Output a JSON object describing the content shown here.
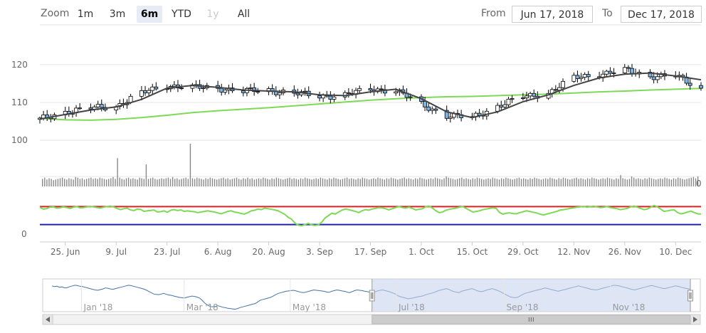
{
  "toolbar": {
    "zoom_label": "Zoom",
    "buttons": [
      {
        "label": "1m",
        "state": "normal"
      },
      {
        "label": "3m",
        "state": "normal"
      },
      {
        "label": "6m",
        "state": "selected"
      },
      {
        "label": "YTD",
        "state": "normal"
      },
      {
        "label": "1y",
        "state": "disabled"
      },
      {
        "label": "All",
        "state": "normal"
      }
    ],
    "from_label": "From",
    "from_value": "Jun 17, 2018",
    "to_label": "To",
    "to_value": "Dec 17, 2018"
  },
  "colors": {
    "sma_long": "#7ed957",
    "sma_short": "#444444",
    "rise_candle": "#ffffff",
    "fall_candle": "#7cb5ec",
    "volume": "#888888",
    "oscillator": "#7ed957",
    "upper_line": "#e02020",
    "lower_line": "#2020b0",
    "navigator_fill": "#c8d4ec",
    "navigator_line": "#4572a7"
  },
  "chart_data": [
    {
      "type": "candlestick",
      "title": "",
      "ylim": [
        100,
        123
      ],
      "yticks": [
        100,
        110,
        120
      ],
      "xticks": [
        "25. Jun",
        "9. Jul",
        "23. Jul",
        "6. Aug",
        "20. Aug",
        "3. Sep",
        "17. Sep",
        "1. Oct",
        "15. Oct",
        "29. Oct",
        "12. Nov",
        "26. Nov",
        "10. Dec"
      ],
      "x_range": [
        "2018-06-18",
        "2018-12-17"
      ],
      "close_series": {
        "dates": [
          "2018-06-18",
          "2018-06-25",
          "2018-07-02",
          "2018-07-09",
          "2018-07-16",
          "2018-07-23",
          "2018-07-30",
          "2018-08-06",
          "2018-08-13",
          "2018-08-20",
          "2018-08-27",
          "2018-09-03",
          "2018-09-10",
          "2018-09-17",
          "2018-09-24",
          "2018-10-01",
          "2018-10-08",
          "2018-10-15",
          "2018-10-22",
          "2018-10-29",
          "2018-11-05",
          "2018-11-12",
          "2018-11-19",
          "2018-11-26",
          "2018-12-03",
          "2018-12-10",
          "2018-12-17"
        ],
        "values": [
          105.5,
          107.5,
          108.5,
          109,
          112.5,
          114.5,
          114,
          113.8,
          113,
          113.2,
          112.5,
          111.6,
          112,
          113.5,
          113.2,
          109.5,
          106.5,
          106,
          109,
          111.5,
          112.5,
          116.5,
          117.5,
          118.5,
          117,
          117,
          113.5
        ]
      },
      "series": [
        {
          "name": "",
          "kind": "sma_long",
          "values": [
            105.8,
            105.4,
            105.3,
            105.5,
            106,
            106.6,
            107.3,
            107.8,
            108.2,
            108.6,
            109.1,
            109.6,
            110.1,
            110.6,
            111,
            111.3,
            111.5,
            111.6,
            111.8,
            112,
            112.2,
            112.5,
            112.8,
            113,
            113.3,
            113.5,
            113.7
          ]
        },
        {
          "name": "",
          "kind": "sma_short",
          "values": [
            105.6,
            106.8,
            108,
            108.8,
            110.8,
            113.8,
            114.5,
            114,
            113.3,
            113,
            112.8,
            112,
            111.8,
            112.8,
            113.5,
            111,
            107.5,
            106,
            107.5,
            110.2,
            112,
            114.5,
            116.5,
            117.5,
            117.8,
            117,
            116
          ]
        }
      ]
    },
    {
      "type": "bar",
      "title": "",
      "note": "volume",
      "values": [
        12,
        14,
        11,
        13,
        12,
        10,
        11,
        12,
        13,
        14,
        12,
        11,
        13,
        12,
        11,
        15,
        14,
        12,
        13,
        11,
        12,
        13,
        14,
        12,
        13,
        12,
        14,
        13,
        12,
        11,
        12,
        13,
        15,
        12,
        45,
        14,
        12,
        11,
        13,
        14,
        12,
        13,
        12,
        11,
        14,
        13,
        12,
        35,
        12,
        13,
        14,
        12,
        11,
        12,
        13,
        12,
        13,
        14,
        12,
        15,
        12,
        13,
        11,
        12,
        13,
        14,
        12,
        68,
        13,
        12,
        14,
        13,
        12,
        11,
        13,
        12,
        14,
        13,
        12,
        11,
        12,
        13,
        14,
        12,
        13,
        11,
        12,
        13,
        14,
        12,
        11,
        13,
        12,
        14,
        12,
        13,
        11,
        12,
        13,
        12,
        14,
        13,
        12,
        11,
        13,
        12,
        14,
        13,
        12,
        11,
        12,
        13,
        14,
        12,
        13,
        12,
        11,
        13,
        12,
        14,
        13,
        12,
        11,
        12,
        13,
        12,
        14,
        13,
        12,
        11,
        13,
        12,
        14,
        13,
        12,
        11,
        12,
        13,
        14,
        12,
        13,
        12,
        11,
        13,
        12,
        14,
        13,
        12,
        11,
        12,
        13,
        12,
        14,
        13,
        12,
        11,
        13,
        12,
        14,
        13,
        12,
        11,
        12,
        13,
        14,
        12,
        13,
        12,
        11,
        13,
        12,
        14,
        13,
        12,
        11,
        12,
        13,
        12,
        14,
        13,
        12,
        11,
        13,
        16,
        14,
        13,
        12,
        11,
        12,
        13,
        14,
        12,
        13,
        12,
        11,
        13,
        12,
        14,
        13,
        12,
        11,
        12,
        13,
        12,
        14,
        13,
        12,
        11,
        13,
        12,
        14,
        13,
        12,
        11,
        12,
        13,
        14,
        12,
        13,
        12,
        11,
        13,
        12,
        14,
        13,
        12,
        11,
        12,
        13,
        12,
        14,
        13,
        12,
        11,
        13,
        12,
        14,
        13,
        12,
        11,
        12,
        13,
        14,
        12,
        13,
        12,
        11,
        13,
        12,
        14,
        13,
        12,
        11,
        12,
        13,
        12,
        14,
        13,
        12,
        11,
        13,
        12,
        18,
        13,
        12,
        11,
        12,
        16,
        14,
        12,
        13,
        12,
        11,
        13,
        12,
        14,
        13,
        12,
        11,
        12,
        13,
        12,
        14,
        13,
        12,
        11,
        13,
        12,
        14,
        13,
        12,
        11,
        12,
        13,
        14,
        15,
        13,
        16
      ],
      "max_label": "0"
    },
    {
      "type": "line",
      "title": "",
      "note": "oscillator",
      "yticks": [
        0
      ],
      "upper_level": 80,
      "lower_level": 20,
      "ylim": [
        0,
        100
      ],
      "values": [
        78,
        72,
        73,
        78,
        79,
        75,
        76,
        79,
        77,
        74,
        78,
        80,
        76,
        77,
        79,
        81,
        79,
        77,
        75,
        78,
        80,
        82,
        79,
        74,
        70,
        73,
        75,
        69,
        67,
        72,
        71,
        64,
        66,
        67,
        69,
        62,
        63,
        66,
        61,
        68,
        70,
        67,
        69,
        64,
        66,
        64,
        63,
        60,
        62,
        64,
        66,
        64,
        62,
        59,
        56,
        60,
        64,
        66,
        62,
        60,
        57,
        55,
        60,
        66,
        68,
        72,
        70,
        75,
        73,
        71,
        69,
        66,
        60,
        54,
        44,
        38,
        25,
        18,
        16,
        20,
        24,
        19,
        17,
        19,
        28,
        42,
        50,
        58,
        55,
        62,
        68,
        72,
        70,
        67,
        64,
        60,
        66,
        70,
        68,
        72,
        74,
        77,
        76,
        73,
        69,
        73,
        77,
        80,
        77,
        75,
        78,
        74,
        69,
        71,
        73,
        80,
        82,
        75,
        66,
        60,
        62,
        68,
        71,
        73,
        75,
        78,
        80,
        74,
        68,
        62,
        64,
        66,
        70,
        72,
        74,
        76,
        74,
        60,
        55,
        58,
        59,
        57,
        56,
        60,
        63,
        66,
        64,
        61,
        59,
        55,
        52,
        55,
        58,
        61,
        64,
        68,
        70,
        72,
        74,
        76,
        78,
        79,
        81,
        78,
        80,
        82,
        79,
        77,
        78,
        80,
        77,
        75,
        73,
        70,
        72,
        74,
        79,
        82,
        78,
        74,
        70,
        72,
        78,
        84,
        79,
        72,
        64,
        66,
        68,
        69,
        60,
        56,
        58,
        62,
        65,
        60,
        56,
        55
      ]
    },
    {
      "type": "area",
      "title": "",
      "note": "navigator",
      "xticks": [
        "Jan '18",
        "Mar '18",
        "May '18",
        "Jul '18",
        "Sep '18",
        "Nov '18"
      ],
      "selected_range": [
        "2018-06-17",
        "2018-12-17"
      ],
      "values": [
        72,
        70,
        71,
        68,
        69,
        66,
        67,
        70,
        72,
        74,
        73,
        71,
        70,
        68,
        66,
        64,
        62,
        60,
        59,
        61,
        63,
        66,
        65,
        63,
        62,
        64,
        66,
        68,
        70,
        72,
        74,
        73,
        71,
        69,
        67,
        65,
        63,
        60,
        56,
        52,
        48,
        47,
        46,
        48,
        50,
        47,
        45,
        44,
        42,
        40,
        38,
        37,
        36,
        38,
        40,
        42,
        41,
        39,
        36,
        30,
        22,
        16,
        12,
        10,
        11,
        13,
        12,
        9,
        8,
        6,
        5,
        4,
        3,
        5,
        8,
        10,
        12,
        14,
        16,
        18,
        20,
        25,
        30,
        32,
        34,
        36,
        38,
        42,
        46,
        50,
        52,
        54,
        56,
        57,
        58,
        59,
        57,
        55,
        53,
        52,
        54,
        56,
        58,
        60,
        59,
        58,
        57,
        56,
        54,
        53,
        56,
        58,
        60,
        59,
        57,
        56,
        54,
        52,
        55,
        58,
        60,
        59,
        58,
        56,
        55,
        53,
        51,
        54,
        57,
        59,
        60,
        58,
        56,
        54,
        51,
        48,
        43,
        40,
        38,
        36,
        34,
        35,
        36,
        38,
        40,
        41,
        43,
        46,
        48,
        50,
        52,
        55,
        58,
        60,
        62,
        64,
        62,
        58,
        55,
        54,
        52,
        56,
        58,
        60,
        62,
        64,
        62,
        58,
        56,
        55,
        57,
        60,
        62,
        64,
        62,
        59,
        56,
        52,
        48,
        44,
        40,
        38,
        37,
        38,
        42,
        46,
        50,
        52,
        54,
        56,
        58,
        60,
        62,
        64,
        66,
        64,
        62,
        60,
        58,
        56,
        58,
        60,
        62,
        64,
        66,
        68,
        70,
        72,
        70,
        68,
        66,
        64,
        62,
        61,
        60,
        62,
        64,
        66,
        68,
        70,
        72,
        74,
        73,
        72,
        70,
        68,
        66,
        64,
        62,
        60,
        62,
        64,
        66,
        68,
        70,
        72,
        73,
        71,
        69,
        67,
        65,
        64,
        66,
        68,
        70,
        72,
        71,
        69,
        67,
        65,
        64,
        62
      ]
    }
  ]
}
